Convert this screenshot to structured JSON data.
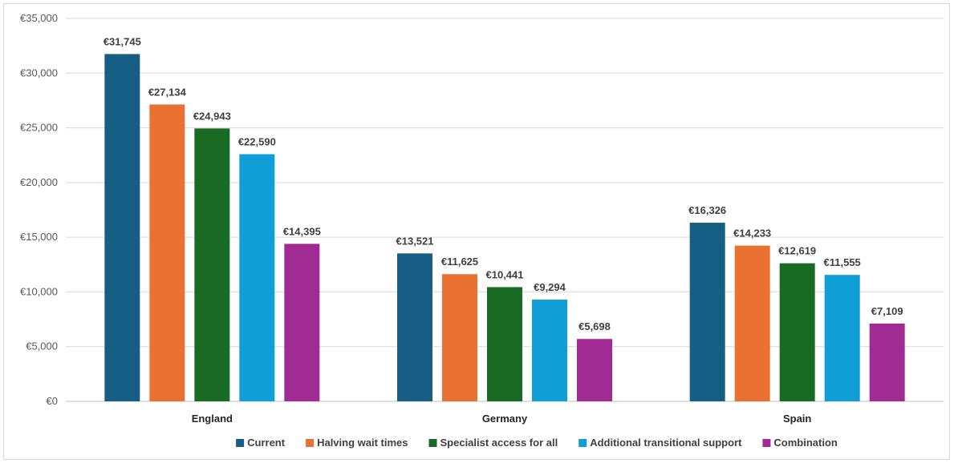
{
  "chart_data": {
    "type": "bar",
    "categories": [
      "England",
      "Germany",
      "Spain"
    ],
    "series": [
      {
        "name": "Current",
        "color": "#165e83",
        "values": [
          31745,
          13521,
          16326
        ],
        "labels": [
          "€31,745",
          "€13,521",
          "€16,326"
        ]
      },
      {
        "name": "Halving wait times",
        "color": "#e97132",
        "values": [
          27134,
          11625,
          14233
        ],
        "labels": [
          "€27,134",
          "€11,625",
          "€14,233"
        ]
      },
      {
        "name": "Specialist access for all",
        "color": "#196b24",
        "values": [
          24943,
          10441,
          12619
        ],
        "labels": [
          "€24,943",
          "€10,441",
          "€12,619"
        ]
      },
      {
        "name": "Additional transitional support",
        "color": "#0f9ed5",
        "values": [
          22590,
          9294,
          11555
        ],
        "labels": [
          "€22,590",
          "€9,294",
          "€11,555"
        ]
      },
      {
        "name": "Combination",
        "color": "#a02b93",
        "values": [
          14395,
          5698,
          7109
        ],
        "labels": [
          "€14,395",
          "€5,698",
          "€7,109"
        ]
      }
    ],
    "ylim": [
      0,
      35000
    ],
    "yticks": [
      0,
      5000,
      10000,
      15000,
      20000,
      25000,
      30000,
      35000
    ],
    "ytick_labels": [
      "€0",
      "€5,000",
      "€10,000",
      "€15,000",
      "€20,000",
      "€25,000",
      "€30,000",
      "€35,000"
    ],
    "title": "",
    "xlabel": "",
    "ylabel": "",
    "grid": true,
    "legend_position": "bottom"
  }
}
